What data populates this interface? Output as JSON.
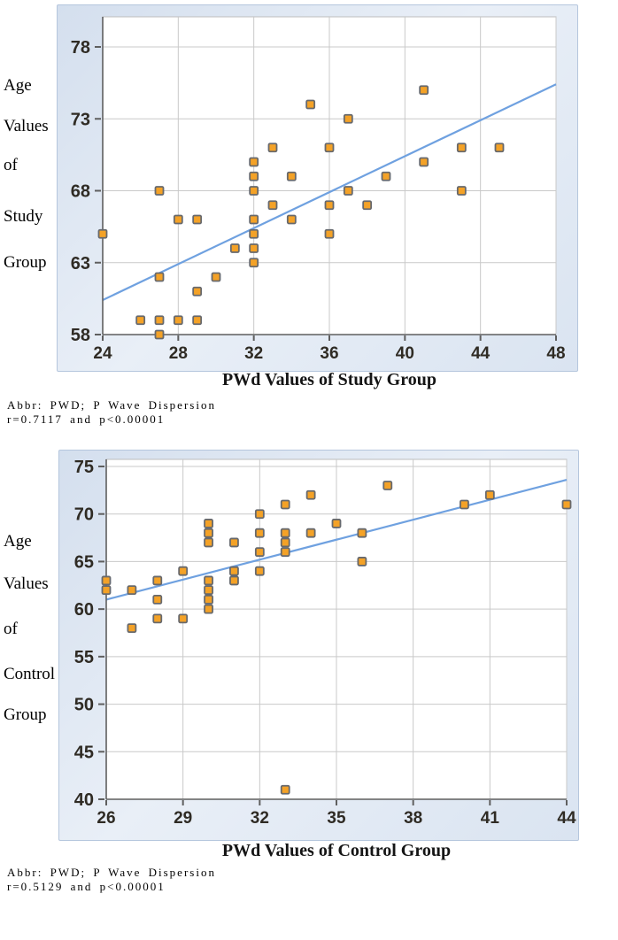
{
  "colors": {
    "marker_fill": "#f4a227",
    "marker_border": "#67696d",
    "trend_line": "#6fa1e0",
    "gridline": "#c9c9c9",
    "axis": "#5f5f5f",
    "tick_text": "#2f2b24",
    "panel_bg": "#dce6f1"
  },
  "chart_data": [
    {
      "type": "scatter",
      "group": "study",
      "xlabel": "PWd Values of Study Group",
      "ylabel_words": [
        "Age",
        "Values",
        "of",
        "Study",
        "Group"
      ],
      "caption_line1": "Abbr: PWD; P Wave Dispersion",
      "caption_line2": "r=0.7117 and p<0.00001",
      "r_value": 0.7117,
      "p_value": "p<0.00001",
      "xlim": [
        24,
        48
      ],
      "ylim": [
        58,
        80
      ],
      "x_ticks": [
        24,
        28,
        32,
        36,
        40,
        44,
        48
      ],
      "y_ticks": [
        78,
        73,
        68,
        63,
        58
      ],
      "grid": true,
      "legend": false,
      "points": [
        [
          24,
          65
        ],
        [
          26,
          59
        ],
        [
          27,
          68
        ],
        [
          27,
          62
        ],
        [
          27,
          59
        ],
        [
          27,
          58
        ],
        [
          28,
          66
        ],
        [
          28,
          59
        ],
        [
          29,
          66
        ],
        [
          29,
          61
        ],
        [
          29,
          59
        ],
        [
          30,
          62
        ],
        [
          31,
          64
        ],
        [
          32,
          70
        ],
        [
          32,
          69
        ],
        [
          32,
          68
        ],
        [
          32,
          66
        ],
        [
          32,
          65
        ],
        [
          32,
          64
        ],
        [
          32,
          63
        ],
        [
          33,
          71
        ],
        [
          33,
          67
        ],
        [
          34,
          69
        ],
        [
          34,
          66
        ],
        [
          35,
          74
        ],
        [
          36,
          71
        ],
        [
          36,
          67
        ],
        [
          36,
          65
        ],
        [
          37,
          73
        ],
        [
          37,
          68
        ],
        [
          38,
          67
        ],
        [
          39,
          69
        ],
        [
          41,
          75
        ],
        [
          41,
          70
        ],
        [
          43,
          71
        ],
        [
          43,
          68
        ],
        [
          45,
          71
        ]
      ],
      "trendline": {
        "x1": 24,
        "y1": 60.4,
        "x2": 48,
        "y2": 75.4
      }
    },
    {
      "type": "scatter",
      "group": "control",
      "xlabel": "PWd Values of Control Group",
      "ylabel_words": [
        "Age",
        "Values",
        "of",
        "Control",
        "Group"
      ],
      "caption_line1": "Abbr: PWD; P Wave Dispersion",
      "caption_line2": "r=0.5129 and p<0.00001",
      "r_value": 0.5129,
      "p_value": "p<0.00001",
      "xlim": [
        26,
        44
      ],
      "ylim": [
        40,
        76
      ],
      "x_ticks": [
        26,
        29,
        32,
        35,
        38,
        41,
        44
      ],
      "y_ticks": [
        75,
        70,
        65,
        60,
        55,
        50,
        45,
        40
      ],
      "grid": true,
      "legend": false,
      "points": [
        [
          26,
          63
        ],
        [
          26,
          62
        ],
        [
          27,
          62
        ],
        [
          27,
          58
        ],
        [
          28,
          63
        ],
        [
          28,
          61
        ],
        [
          28,
          59
        ],
        [
          29,
          64
        ],
        [
          29,
          59
        ],
        [
          30,
          69
        ],
        [
          30,
          68
        ],
        [
          30,
          67
        ],
        [
          30,
          63
        ],
        [
          30,
          62
        ],
        [
          30,
          61
        ],
        [
          30,
          60
        ],
        [
          31,
          67
        ],
        [
          31,
          64
        ],
        [
          31,
          63
        ],
        [
          32,
          70
        ],
        [
          32,
          68
        ],
        [
          32,
          66
        ],
        [
          32,
          64
        ],
        [
          33,
          71
        ],
        [
          33,
          68
        ],
        [
          33,
          67
        ],
        [
          33,
          66
        ],
        [
          33,
          41
        ],
        [
          34,
          72
        ],
        [
          34,
          68
        ],
        [
          35,
          69
        ],
        [
          36,
          68
        ],
        [
          36,
          65
        ],
        [
          37,
          73
        ],
        [
          40,
          71
        ],
        [
          41,
          72
        ],
        [
          44,
          71
        ]
      ],
      "trendline": {
        "x1": 26,
        "y1": 61.0,
        "x2": 44,
        "y2": 73.6
      }
    }
  ]
}
